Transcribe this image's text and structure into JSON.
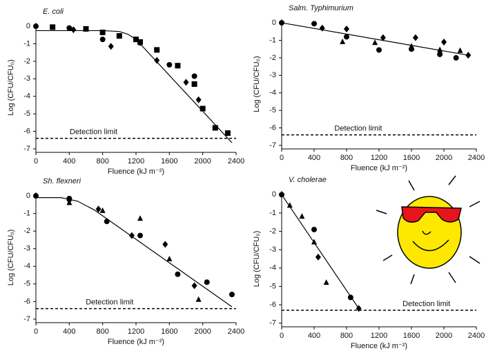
{
  "chart_data": [
    {
      "type": "scatter",
      "title": "E. coli",
      "x_label": "Fluence (kJ m⁻²)",
      "y_label": "Log (CFU/CFU₀)",
      "xlim": [
        0,
        2400
      ],
      "xticks": [
        0,
        400,
        800,
        1200,
        1600,
        2000,
        2400
      ],
      "ylim": [
        -7.2,
        0.2
      ],
      "yticks": [
        0,
        -1,
        -2,
        -3,
        -4,
        -5,
        -6,
        -7
      ],
      "series": [
        {
          "marker": "circle",
          "color": "#000000",
          "x": [
            0,
            400,
            800,
            1250,
            1600,
            1900,
            2150
          ],
          "values": [
            0,
            -0.1,
            -0.75,
            -0.95,
            -2.2,
            -2.85,
            -5.8
          ]
        },
        {
          "marker": "square",
          "color": "#000000",
          "x": [
            200,
            600,
            800,
            1000,
            1200,
            1250,
            1450,
            1700,
            1900,
            2000,
            2150,
            2300
          ],
          "values": [
            -0.05,
            -0.15,
            -0.35,
            -0.55,
            -0.75,
            -0.9,
            -1.35,
            -2.25,
            -3.3,
            -4.7,
            -5.8,
            -6.1
          ]
        },
        {
          "marker": "diamond",
          "color": "#000000",
          "x": [
            450,
            900,
            1450,
            1800,
            1950
          ],
          "values": [
            -0.2,
            -1.15,
            -1.95,
            -3.2,
            -4.2
          ]
        }
      ],
      "fit": {
        "color": "#000000",
        "x": [
          0,
          800,
          1000,
          1100,
          1200,
          2350
        ],
        "values": [
          -0.25,
          -0.25,
          -0.3,
          -0.45,
          -0.75,
          -6.65
        ]
      },
      "detection_limit": {
        "label": "Detection limit",
        "value": -6.4
      }
    },
    {
      "type": "scatter",
      "title": "Salm. Typhimurium",
      "x_label": "Fluence (kJ m⁻²)",
      "y_label": "Log (CFU/CFU₀)",
      "xlim": [
        0,
        2400
      ],
      "xticks": [
        0,
        400,
        800,
        1200,
        1600,
        2000,
        2400
      ],
      "ylim": [
        -7.2,
        0.2
      ],
      "yticks": [
        0,
        -1,
        -2,
        -3,
        -4,
        -5,
        -6,
        -7
      ],
      "series": [
        {
          "marker": "circle",
          "color": "#000000",
          "x": [
            0,
            400,
            800,
            1200,
            1600,
            1950,
            2150
          ],
          "values": [
            0,
            -0.05,
            -0.8,
            -1.55,
            -1.5,
            -1.8,
            -2.0
          ]
        },
        {
          "marker": "triangle",
          "color": "#000000",
          "x": [
            750,
            1150,
            1600,
            1950,
            2200
          ],
          "values": [
            -1.1,
            -1.15,
            -1.35,
            -1.55,
            -1.6
          ]
        },
        {
          "marker": "diamond",
          "color": "#000000",
          "x": [
            500,
            800,
            1250,
            1650,
            2000,
            2300
          ],
          "values": [
            -0.3,
            -0.35,
            -0.85,
            -0.85,
            -1.1,
            -1.85
          ]
        }
      ],
      "fit": {
        "color": "#000000",
        "x": [
          0,
          2300
        ],
        "values": [
          0,
          -1.85
        ]
      },
      "detection_limit": {
        "label": "Detection limit",
        "value": -6.4
      }
    },
    {
      "type": "scatter",
      "title": "Sh. flexneri",
      "x_label": "Fluence (kJ m⁻²)",
      "y_label": "Log (CFU/CFU₀)",
      "xlim": [
        0,
        2400
      ],
      "xticks": [
        0,
        400,
        800,
        1200,
        1600,
        2000,
        2400
      ],
      "ylim": [
        -7.2,
        0.2
      ],
      "yticks": [
        0,
        -1,
        -2,
        -3,
        -4,
        -5,
        -6,
        -7
      ],
      "series": [
        {
          "marker": "circle",
          "color": "#000000",
          "x": [
            0,
            400,
            850,
            1250,
            1700,
            2050,
            2350
          ],
          "values": [
            0,
            -0.15,
            -1.45,
            -2.25,
            -4.45,
            -4.9,
            -5.6
          ]
        },
        {
          "marker": "triangle",
          "color": "#000000",
          "x": [
            400,
            800,
            1250,
            1600,
            1950
          ],
          "values": [
            -0.4,
            -0.85,
            -1.3,
            -3.6,
            -5.9
          ]
        },
        {
          "marker": "diamond",
          "color": "#000000",
          "x": [
            400,
            750,
            1150,
            1550,
            1900
          ],
          "values": [
            -0.25,
            -0.75,
            -2.25,
            -2.75,
            -5.1
          ]
        }
      ],
      "fit": {
        "color": "#000000",
        "x": [
          0,
          300,
          500,
          700,
          2350
        ],
        "values": [
          -0.1,
          -0.1,
          -0.3,
          -0.8,
          -6.3
        ]
      },
      "detection_limit": {
        "label": "Detection limit",
        "value": -6.4
      }
    },
    {
      "type": "scatter",
      "title": "V. cholerae",
      "x_label": "Fluence (kJ m⁻²)",
      "y_label": "Log (CFU/CFU₀)",
      "xlim": [
        0,
        2400
      ],
      "xticks": [
        0,
        400,
        800,
        1200,
        1600,
        2000,
        2400
      ],
      "ylim": [
        -7.2,
        0.2
      ],
      "yticks": [
        0,
        -1,
        -2,
        -3,
        -4,
        -5,
        -6,
        -7
      ],
      "series": [
        {
          "marker": "circle",
          "color": "#000000",
          "x": [
            0,
            400,
            850
          ],
          "values": [
            0,
            -1.9,
            -5.6
          ]
        },
        {
          "marker": "triangle",
          "color": "#000000",
          "x": [
            100,
            250,
            400,
            550
          ],
          "values": [
            -0.6,
            -1.2,
            -2.6,
            -4.8
          ]
        },
        {
          "marker": "diamond",
          "color": "#000000",
          "x": [
            450,
            950
          ],
          "values": [
            -3.4,
            -6.2
          ]
        }
      ],
      "fit": {
        "color": "#000000",
        "x": [
          0,
          950
        ],
        "values": [
          0,
          -6.2
        ]
      },
      "detection_limit": {
        "label": "Detection limit",
        "value": -6.3
      }
    }
  ]
}
